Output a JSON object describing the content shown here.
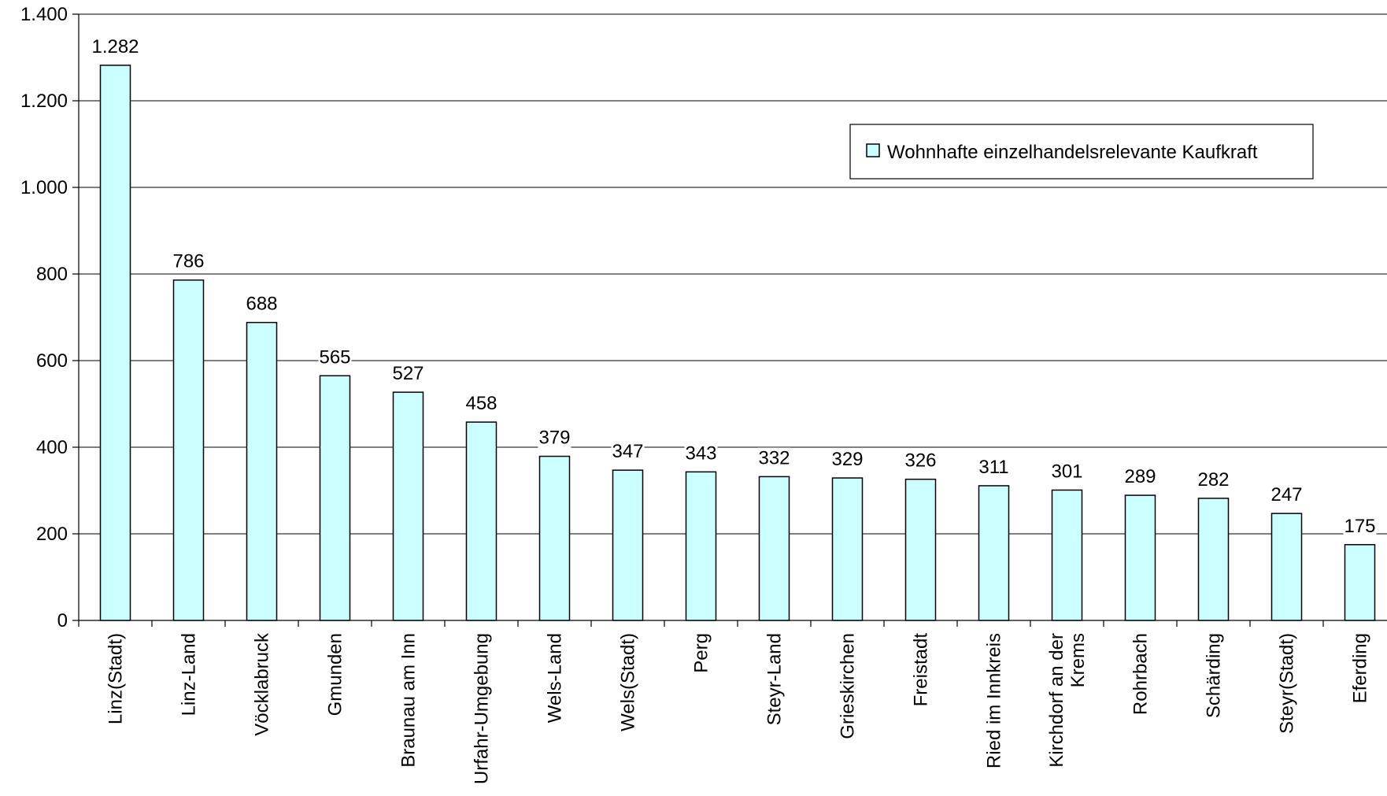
{
  "chart_data": {
    "type": "bar",
    "title": "",
    "xlabel": "",
    "ylabel": "",
    "ylim": [
      0,
      1400
    ],
    "yticks": [
      0,
      200,
      400,
      600,
      800,
      1000,
      1200,
      1400
    ],
    "ytick_labels": [
      "0",
      "200",
      "400",
      "600",
      "800",
      "1.000",
      "1.200",
      "1.400"
    ],
    "grid": true,
    "legend_position": "top-right",
    "categories": [
      [
        "Linz(Stadt)"
      ],
      [
        "Linz-Land"
      ],
      [
        "Vöcklabruck"
      ],
      [
        "Gmunden"
      ],
      [
        "Braunau am Inn"
      ],
      [
        "Urfahr-Umgebung"
      ],
      [
        "Wels-Land"
      ],
      [
        "Wels(Stadt)"
      ],
      [
        "Perg"
      ],
      [
        "Steyr-Land"
      ],
      [
        "Grieskirchen"
      ],
      [
        "Freistadt"
      ],
      [
        "Ried im Innkreis"
      ],
      [
        "Kirchdorf an der",
        "Krems"
      ],
      [
        "Rohrbach"
      ],
      [
        "Schärding"
      ],
      [
        "Steyr(Stadt)"
      ],
      [
        "Eferding"
      ]
    ],
    "series": [
      {
        "name": "Wohnhafte einzelhandelsrelevante Kaufkraft",
        "color": "#ccffff",
        "values": [
          1282,
          786,
          688,
          565,
          527,
          458,
          379,
          347,
          343,
          332,
          329,
          326,
          311,
          301,
          289,
          282,
          247,
          175
        ],
        "value_labels": [
          "1.282",
          "786",
          "688",
          "565",
          "527",
          "458",
          "379",
          "347",
          "343",
          "332",
          "329",
          "326",
          "311",
          "301",
          "289",
          "282",
          "247",
          "175"
        ]
      }
    ]
  }
}
